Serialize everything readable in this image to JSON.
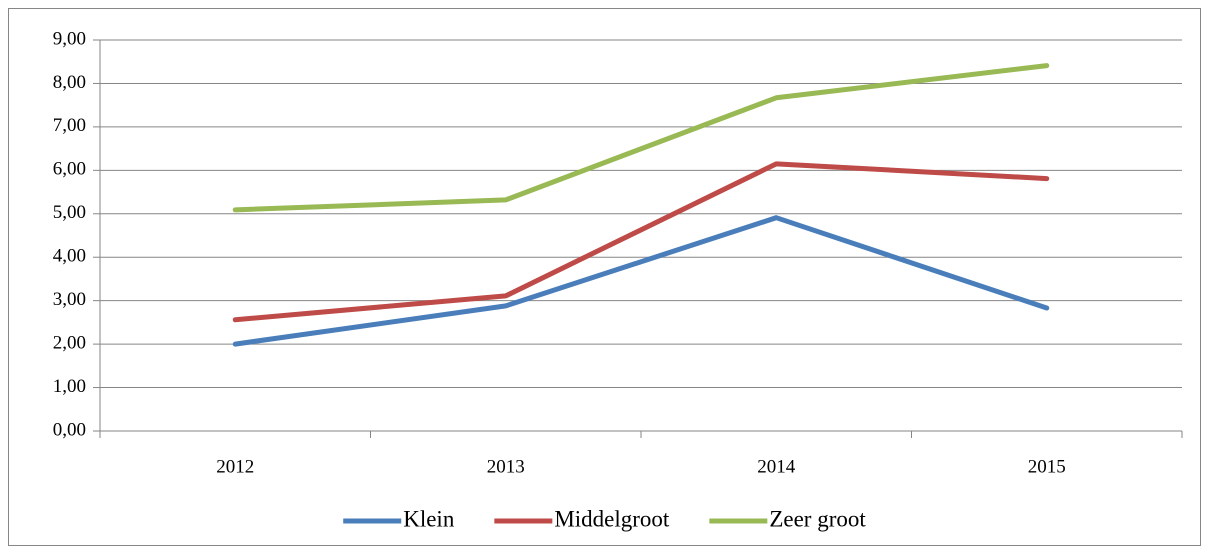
{
  "chart_data": {
    "type": "line",
    "categories": [
      "2012",
      "2013",
      "2014",
      "2015"
    ],
    "series": [
      {
        "name": "Klein",
        "color": "#4a7ebb",
        "values": [
          2.0,
          2.88,
          4.91,
          2.83
        ]
      },
      {
        "name": "Middelgroot",
        "color": "#be4b48",
        "values": [
          2.56,
          3.11,
          6.15,
          5.81
        ]
      },
      {
        "name": "Zeer groot",
        "color": "#98b954",
        "values": [
          5.09,
          5.32,
          7.67,
          8.41
        ]
      }
    ],
    "ylim": [
      0,
      9
    ],
    "yticks": [
      {
        "value": 0,
        "label": "0,00"
      },
      {
        "value": 1,
        "label": "1,00"
      },
      {
        "value": 2,
        "label": "2,00"
      },
      {
        "value": 3,
        "label": "3,00"
      },
      {
        "value": 4,
        "label": "4,00"
      },
      {
        "value": 5,
        "label": "5,00"
      },
      {
        "value": 6,
        "label": "6,00"
      },
      {
        "value": 7,
        "label": "7,00"
      },
      {
        "value": 8,
        "label": "8,00"
      },
      {
        "value": 9,
        "label": "9,00"
      }
    ],
    "grid": true,
    "legend": "bottom"
  }
}
